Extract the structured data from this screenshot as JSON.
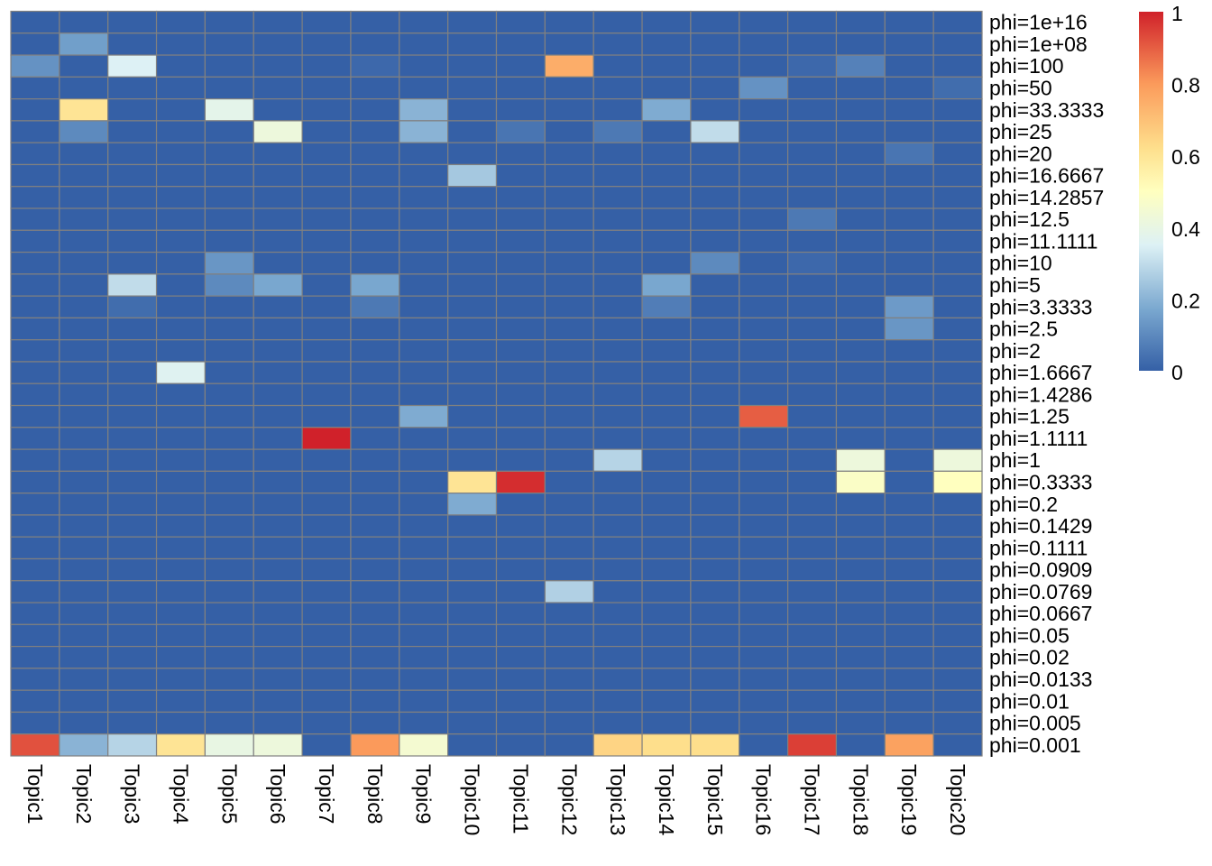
{
  "chart_data": {
    "type": "heatmap",
    "title": "",
    "columns": [
      "Topic1",
      "Topic2",
      "Topic3",
      "Topic4",
      "Topic5",
      "Topic6",
      "Topic7",
      "Topic8",
      "Topic9",
      "Topic10",
      "Topic11",
      "Topic12",
      "Topic13",
      "Topic14",
      "Topic15",
      "Topic16",
      "Topic17",
      "Topic18",
      "Topic19",
      "Topic20"
    ],
    "rows": [
      "phi=1e+16",
      "phi=1e+08",
      "phi=100",
      "phi=50",
      "phi=33.3333",
      "phi=25",
      "phi=20",
      "phi=16.6667",
      "phi=14.2857",
      "phi=12.5",
      "phi=11.1111",
      "phi=10",
      "phi=5",
      "phi=3.3333",
      "phi=2.5",
      "phi=2",
      "phi=1.6667",
      "phi=1.4286",
      "phi=1.25",
      "phi=1.1111",
      "phi=1",
      "phi=0.3333",
      "phi=0.2",
      "phi=0.1429",
      "phi=0.1111",
      "phi=0.0909",
      "phi=0.0769",
      "phi=0.0667",
      "phi=0.05",
      "phi=0.02",
      "phi=0.0133",
      "phi=0.01",
      "phi=0.005",
      "phi=0.001"
    ],
    "values": [
      [
        0,
        0,
        0,
        0,
        0,
        0,
        0,
        0,
        0,
        0,
        0,
        0,
        0,
        0,
        0,
        0,
        0,
        0,
        0,
        0
      ],
      [
        0,
        0.15,
        0,
        0,
        0,
        0,
        0,
        0,
        0,
        0,
        0,
        0,
        0,
        0,
        0,
        0,
        0,
        0,
        0,
        0
      ],
      [
        0.12,
        0,
        0.35,
        0,
        0,
        0,
        0,
        0.02,
        0,
        0,
        0,
        0.75,
        0,
        0,
        0,
        0,
        0.02,
        0.08,
        0,
        0
      ],
      [
        0,
        0,
        0,
        0,
        0,
        0,
        0,
        0,
        0,
        0,
        0,
        0,
        0,
        0,
        0,
        0.12,
        0,
        0,
        0,
        0.03
      ],
      [
        0,
        0.6,
        0,
        0,
        0.38,
        0,
        0,
        0,
        0.2,
        0,
        0,
        0,
        0,
        0.18,
        0,
        0,
        0,
        0,
        0,
        0
      ],
      [
        0,
        0.1,
        0,
        0,
        0,
        0.42,
        0,
        0,
        0.2,
        0,
        0.05,
        0,
        0.06,
        0,
        0.3,
        0,
        0,
        0,
        0,
        0
      ],
      [
        0,
        0,
        0,
        0,
        0,
        0,
        0,
        0,
        0,
        0,
        0,
        0,
        0,
        0,
        0,
        0,
        0,
        0,
        0.05,
        0
      ],
      [
        0,
        0,
        0,
        0,
        0,
        0,
        0,
        0,
        0,
        0.25,
        0,
        0,
        0,
        0,
        0,
        0,
        0,
        0,
        0,
        0
      ],
      [
        0,
        0,
        0,
        0,
        0,
        0,
        0,
        0,
        0,
        0,
        0,
        0,
        0,
        0,
        0,
        0,
        0,
        0,
        0,
        0
      ],
      [
        0,
        0,
        0,
        0,
        0,
        0,
        0,
        0,
        0,
        0,
        0,
        0,
        0,
        0,
        0,
        0,
        0.06,
        0,
        0,
        0
      ],
      [
        0,
        0,
        0,
        0,
        0,
        0,
        0,
        0,
        0,
        0,
        0,
        0,
        0,
        0,
        0,
        0,
        0,
        0,
        0,
        0
      ],
      [
        0,
        0,
        0,
        0,
        0.13,
        0,
        0,
        0,
        0,
        0,
        0,
        0,
        0,
        0,
        0.1,
        0,
        0.02,
        0,
        0,
        0
      ],
      [
        0,
        0,
        0.3,
        0,
        0.1,
        0.17,
        0,
        0.17,
        0,
        0,
        0,
        0,
        0,
        0.17,
        0,
        0,
        0,
        0,
        0,
        0
      ],
      [
        0,
        0,
        0.03,
        0,
        0,
        0,
        0,
        0.06,
        0,
        0,
        0,
        0,
        0,
        0.07,
        0,
        0,
        0,
        0,
        0.14,
        0
      ],
      [
        0,
        0,
        0,
        0,
        0,
        0,
        0,
        0,
        0,
        0,
        0,
        0,
        0,
        0,
        0,
        0,
        0,
        0,
        0.13,
        0
      ],
      [
        0,
        0,
        0,
        0,
        0,
        0,
        0,
        0,
        0,
        0,
        0,
        0,
        0,
        0,
        0,
        0,
        0,
        0,
        0,
        0
      ],
      [
        0,
        0,
        0,
        0.36,
        0,
        0,
        0,
        0,
        0,
        0,
        0,
        0,
        0,
        0,
        0,
        0,
        0,
        0,
        0,
        0
      ],
      [
        0,
        0,
        0,
        0,
        0,
        0,
        0,
        0,
        0,
        0,
        0,
        0,
        0,
        0,
        0,
        0,
        0,
        0,
        0,
        0
      ],
      [
        0,
        0,
        0,
        0,
        0,
        0,
        0,
        0,
        0.18,
        0,
        0,
        0,
        0,
        0,
        0,
        0.9,
        0,
        0,
        0,
        0
      ],
      [
        0,
        0,
        0,
        0,
        0,
        0,
        1,
        0,
        0,
        0,
        0,
        0,
        0,
        0,
        0,
        0,
        0,
        0,
        0,
        0
      ],
      [
        0,
        0,
        0,
        0,
        0,
        0,
        0,
        0,
        0,
        0,
        0,
        0,
        0.28,
        0,
        0,
        0,
        0,
        0.42,
        0,
        0.42
      ],
      [
        0,
        0,
        0,
        0,
        0,
        0,
        0,
        0,
        0,
        0.6,
        0.98,
        0,
        0,
        0,
        0,
        0,
        0,
        0.48,
        0,
        0.5
      ],
      [
        0,
        0,
        0,
        0,
        0,
        0,
        0,
        0,
        0,
        0.18,
        0,
        0,
        0,
        0,
        0,
        0,
        0,
        0,
        0,
        0
      ],
      [
        0,
        0,
        0,
        0,
        0,
        0,
        0,
        0,
        0,
        0,
        0,
        0,
        0,
        0,
        0,
        0,
        0,
        0,
        0,
        0
      ],
      [
        0,
        0,
        0,
        0,
        0,
        0,
        0,
        0,
        0,
        0,
        0,
        0,
        0,
        0,
        0,
        0,
        0,
        0,
        0,
        0
      ],
      [
        0,
        0,
        0,
        0,
        0,
        0,
        0,
        0,
        0,
        0,
        0,
        0,
        0,
        0,
        0,
        0,
        0,
        0,
        0,
        0
      ],
      [
        0,
        0,
        0,
        0,
        0,
        0,
        0,
        0,
        0,
        0,
        0,
        0.27,
        0,
        0,
        0,
        0,
        0,
        0,
        0,
        0
      ],
      [
        0,
        0,
        0,
        0,
        0,
        0,
        0,
        0,
        0,
        0,
        0,
        0,
        0,
        0,
        0,
        0,
        0,
        0,
        0,
        0
      ],
      [
        0,
        0,
        0,
        0,
        0,
        0,
        0,
        0,
        0,
        0,
        0,
        0,
        0,
        0,
        0,
        0,
        0,
        0,
        0,
        0
      ],
      [
        0,
        0,
        0,
        0,
        0,
        0,
        0,
        0,
        0,
        0,
        0,
        0,
        0,
        0,
        0,
        0,
        0,
        0,
        0,
        0
      ],
      [
        0,
        0,
        0,
        0,
        0,
        0,
        0,
        0,
        0,
        0,
        0,
        0,
        0,
        0,
        0,
        0,
        0,
        0,
        0,
        0
      ],
      [
        0,
        0,
        0,
        0,
        0,
        0,
        0,
        0,
        0,
        0,
        0,
        0,
        0,
        0,
        0,
        0,
        0,
        0,
        0,
        0
      ],
      [
        0,
        0,
        0,
        0,
        0,
        0,
        0,
        0,
        0,
        0,
        0,
        0,
        0,
        0,
        0,
        0,
        0,
        0,
        0,
        0
      ],
      [
        0.92,
        0.2,
        0.28,
        0.6,
        0.4,
        0.42,
        0,
        0.8,
        0.45,
        0,
        0,
        0,
        0.65,
        0.62,
        0.62,
        0,
        0.95,
        0,
        0.78,
        0
      ]
    ],
    "value_range": [
      0,
      1
    ],
    "legend": {
      "position": "right",
      "ticks": [
        "0",
        "0.2",
        "0.4",
        "0.6",
        "0.8",
        "1"
      ],
      "tick_values": [
        0,
        0.2,
        0.4,
        0.6,
        0.8,
        1
      ]
    },
    "color_stops": [
      {
        "v": 0,
        "c": "#3560A6"
      },
      {
        "v": 0.17,
        "c": "#79A7CF"
      },
      {
        "v": 0.35,
        "c": "#DDF1F5"
      },
      {
        "v": 0.5,
        "c": "#FFFFBF"
      },
      {
        "v": 0.62,
        "c": "#FEDF8C"
      },
      {
        "v": 0.8,
        "c": "#FB9A5B"
      },
      {
        "v": 1,
        "c": "#D0212A"
      }
    ],
    "grid_color": "#808080"
  }
}
